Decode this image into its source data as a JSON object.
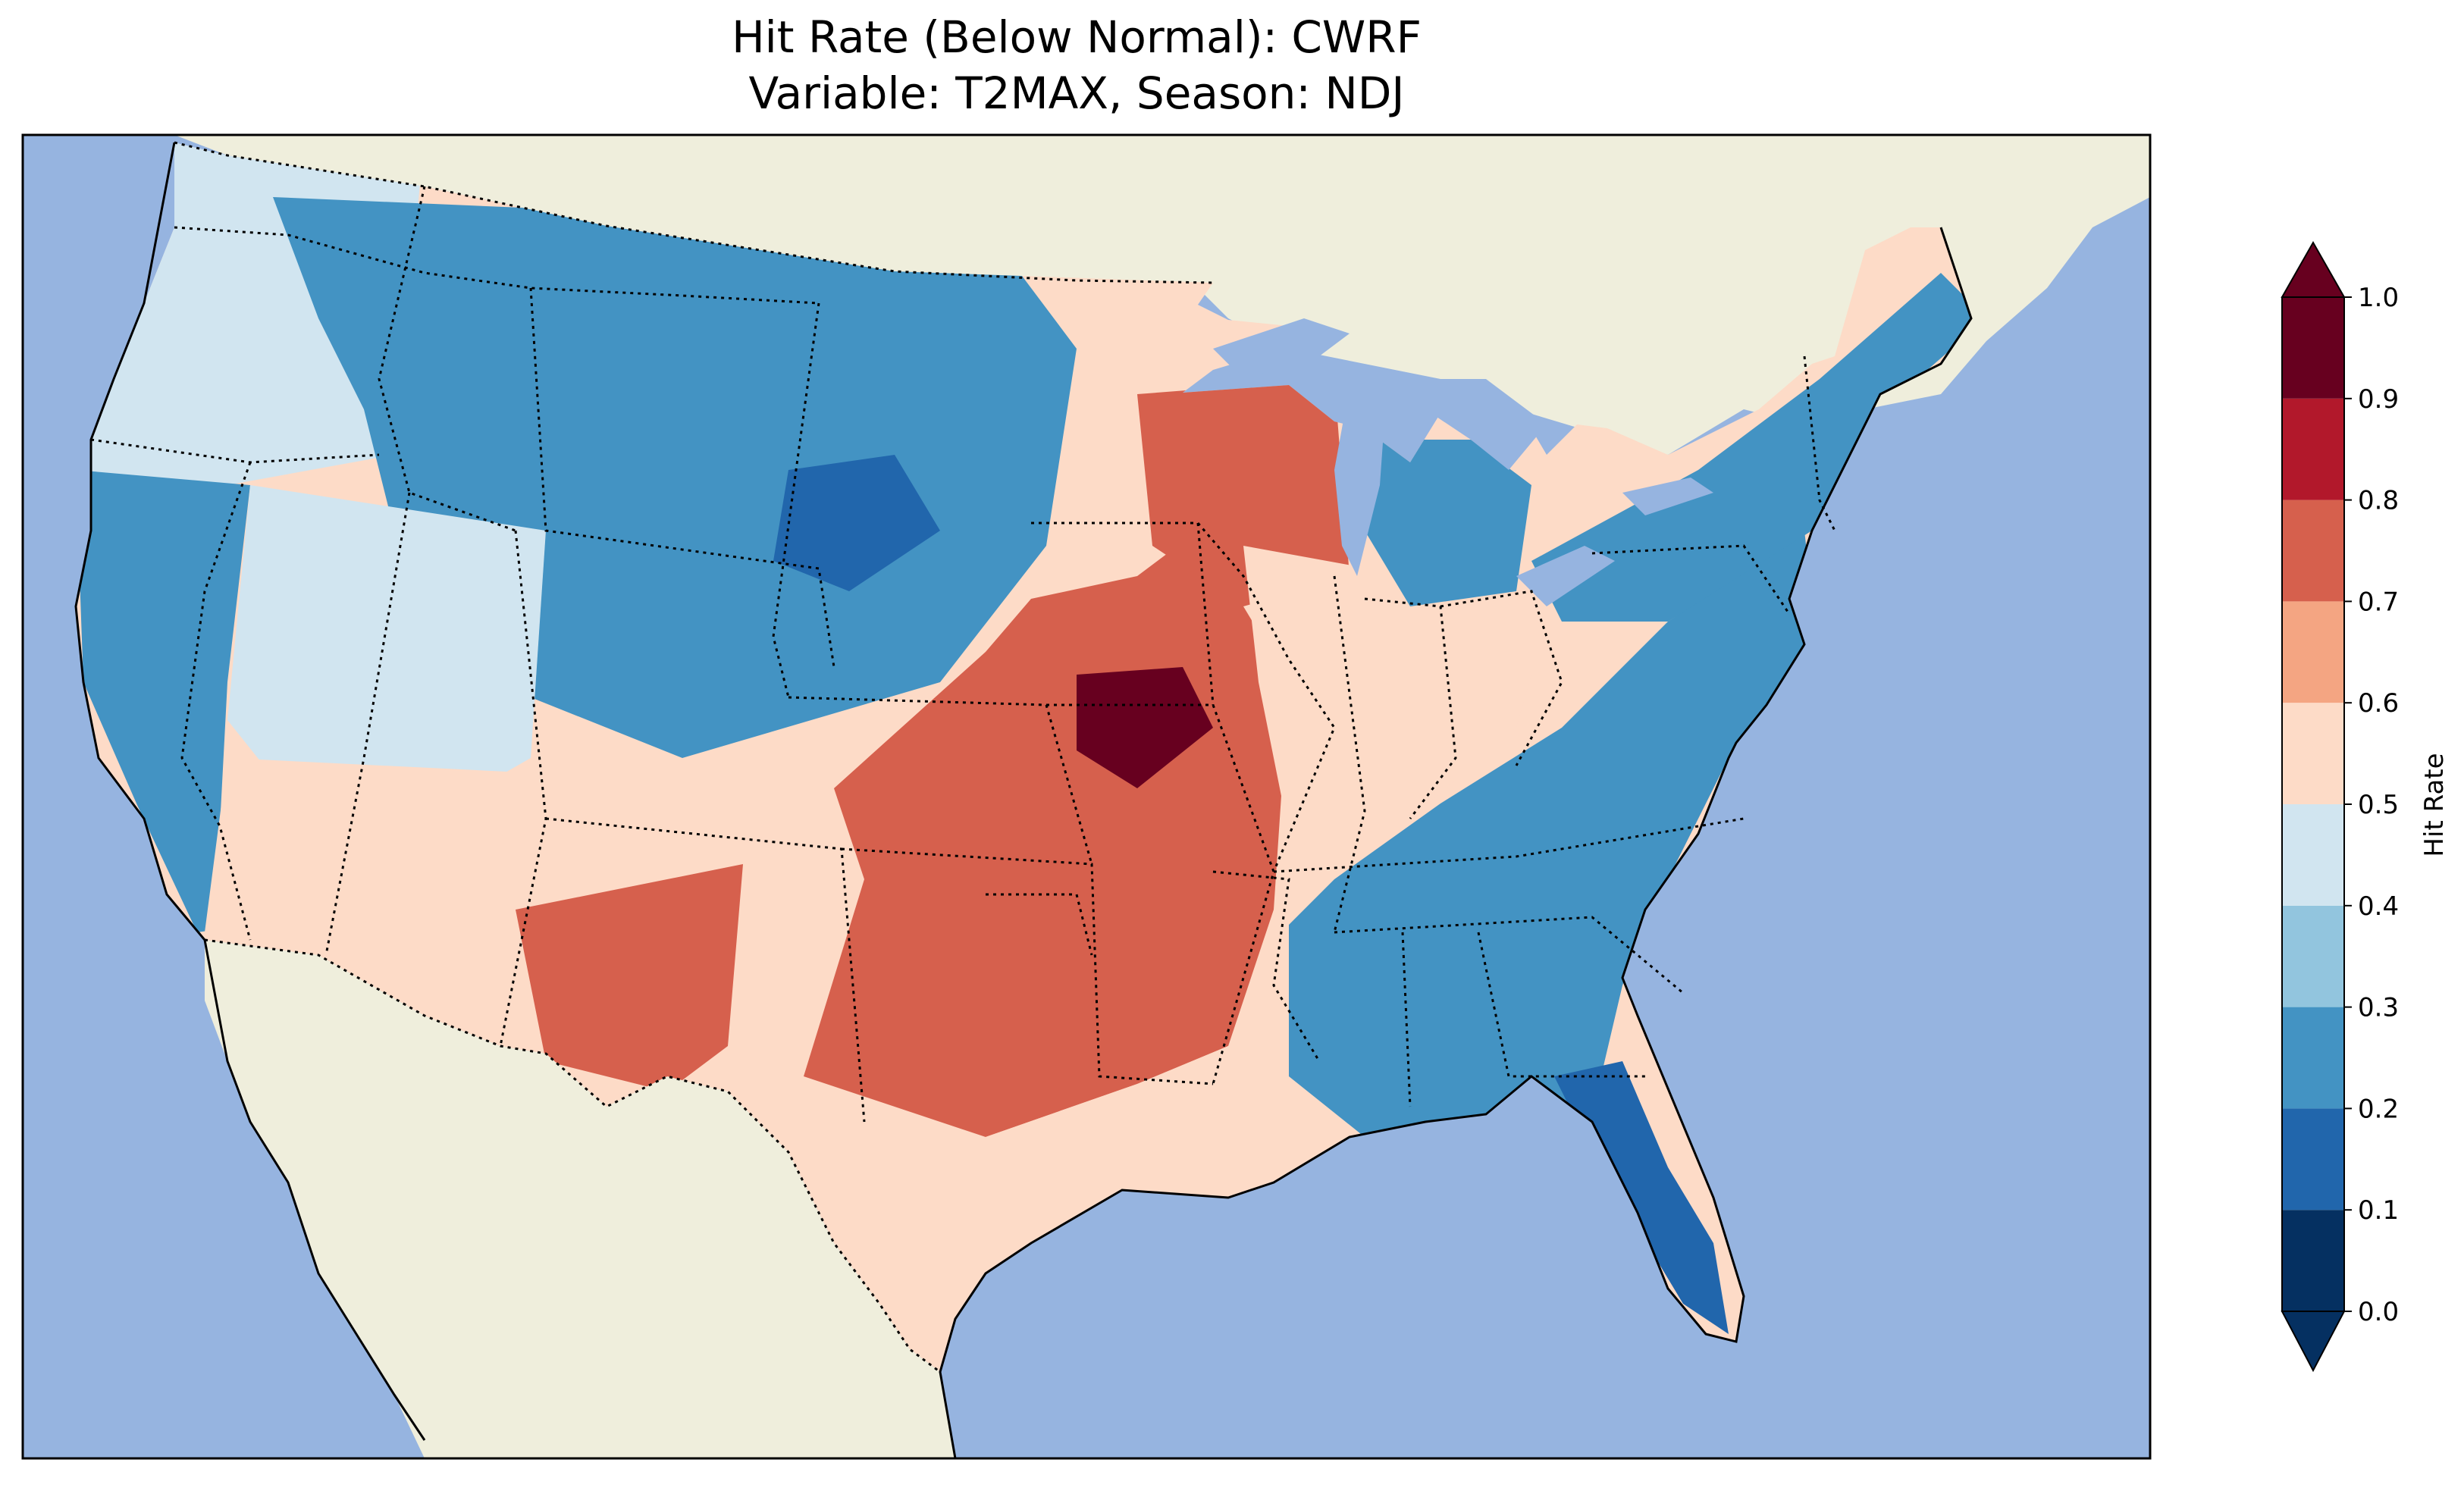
{
  "title": {
    "line1": "Hit Rate (Below Normal): CWRF",
    "line2": "Variable: T2MAX, Season: NDJ"
  },
  "colors": {
    "ocean": "#96b4e0",
    "land": "#efeedc",
    "lake": "#96b4e0",
    "border": "#000000"
  },
  "colorbar": {
    "label": "Hit Rate",
    "ticks": [
      "0.0",
      "0.1",
      "0.2",
      "0.3",
      "0.4",
      "0.5",
      "0.6",
      "0.7",
      "0.8",
      "0.9",
      "1.0"
    ],
    "bins": [
      {
        "from": 0.0,
        "to": 0.1,
        "color": "#053061"
      },
      {
        "from": 0.1,
        "to": 0.2,
        "color": "#2166ac"
      },
      {
        "from": 0.2,
        "to": 0.3,
        "color": "#4393c3"
      },
      {
        "from": 0.3,
        "to": 0.4,
        "color": "#92c5de"
      },
      {
        "from": 0.4,
        "to": 0.5,
        "color": "#d1e5f0"
      },
      {
        "from": 0.5,
        "to": 0.6,
        "color": "#fddbc7"
      },
      {
        "from": 0.6,
        "to": 0.7,
        "color": "#f4a582"
      },
      {
        "from": 0.7,
        "to": 0.8,
        "color": "#d6604d"
      },
      {
        "from": 0.8,
        "to": 0.9,
        "color": "#b2182b"
      },
      {
        "from": 0.9,
        "to": 1.0,
        "color": "#67001f"
      }
    ],
    "extend_under_color": "#053061",
    "extend_over_color": "#67001f"
  },
  "regions": [
    {
      "name": "pacific-northwest-coast",
      "value": 0.45
    },
    {
      "name": "northern-rockies",
      "value": 0.28
    },
    {
      "name": "wyoming-core",
      "value": 0.15
    },
    {
      "name": "california-coast",
      "value": 0.28
    },
    {
      "name": "great-basin",
      "value": 0.45
    },
    {
      "name": "southwest",
      "value": 0.55
    },
    {
      "name": "new-mexico-texas-west",
      "value": 0.75
    },
    {
      "name": "central-plains",
      "value": 0.75
    },
    {
      "name": "iowa-missouri-peak",
      "value": 0.95
    },
    {
      "name": "wisconsin",
      "value": 0.75
    },
    {
      "name": "illinois-indiana",
      "value": 0.55
    },
    {
      "name": "gulf-coast-texas",
      "value": 0.55
    },
    {
      "name": "southeast",
      "value": 0.25
    },
    {
      "name": "florida-peninsula",
      "value": 0.15
    },
    {
      "name": "northeast",
      "value": 0.25
    },
    {
      "name": "michigan",
      "value": 0.25
    }
  ]
}
